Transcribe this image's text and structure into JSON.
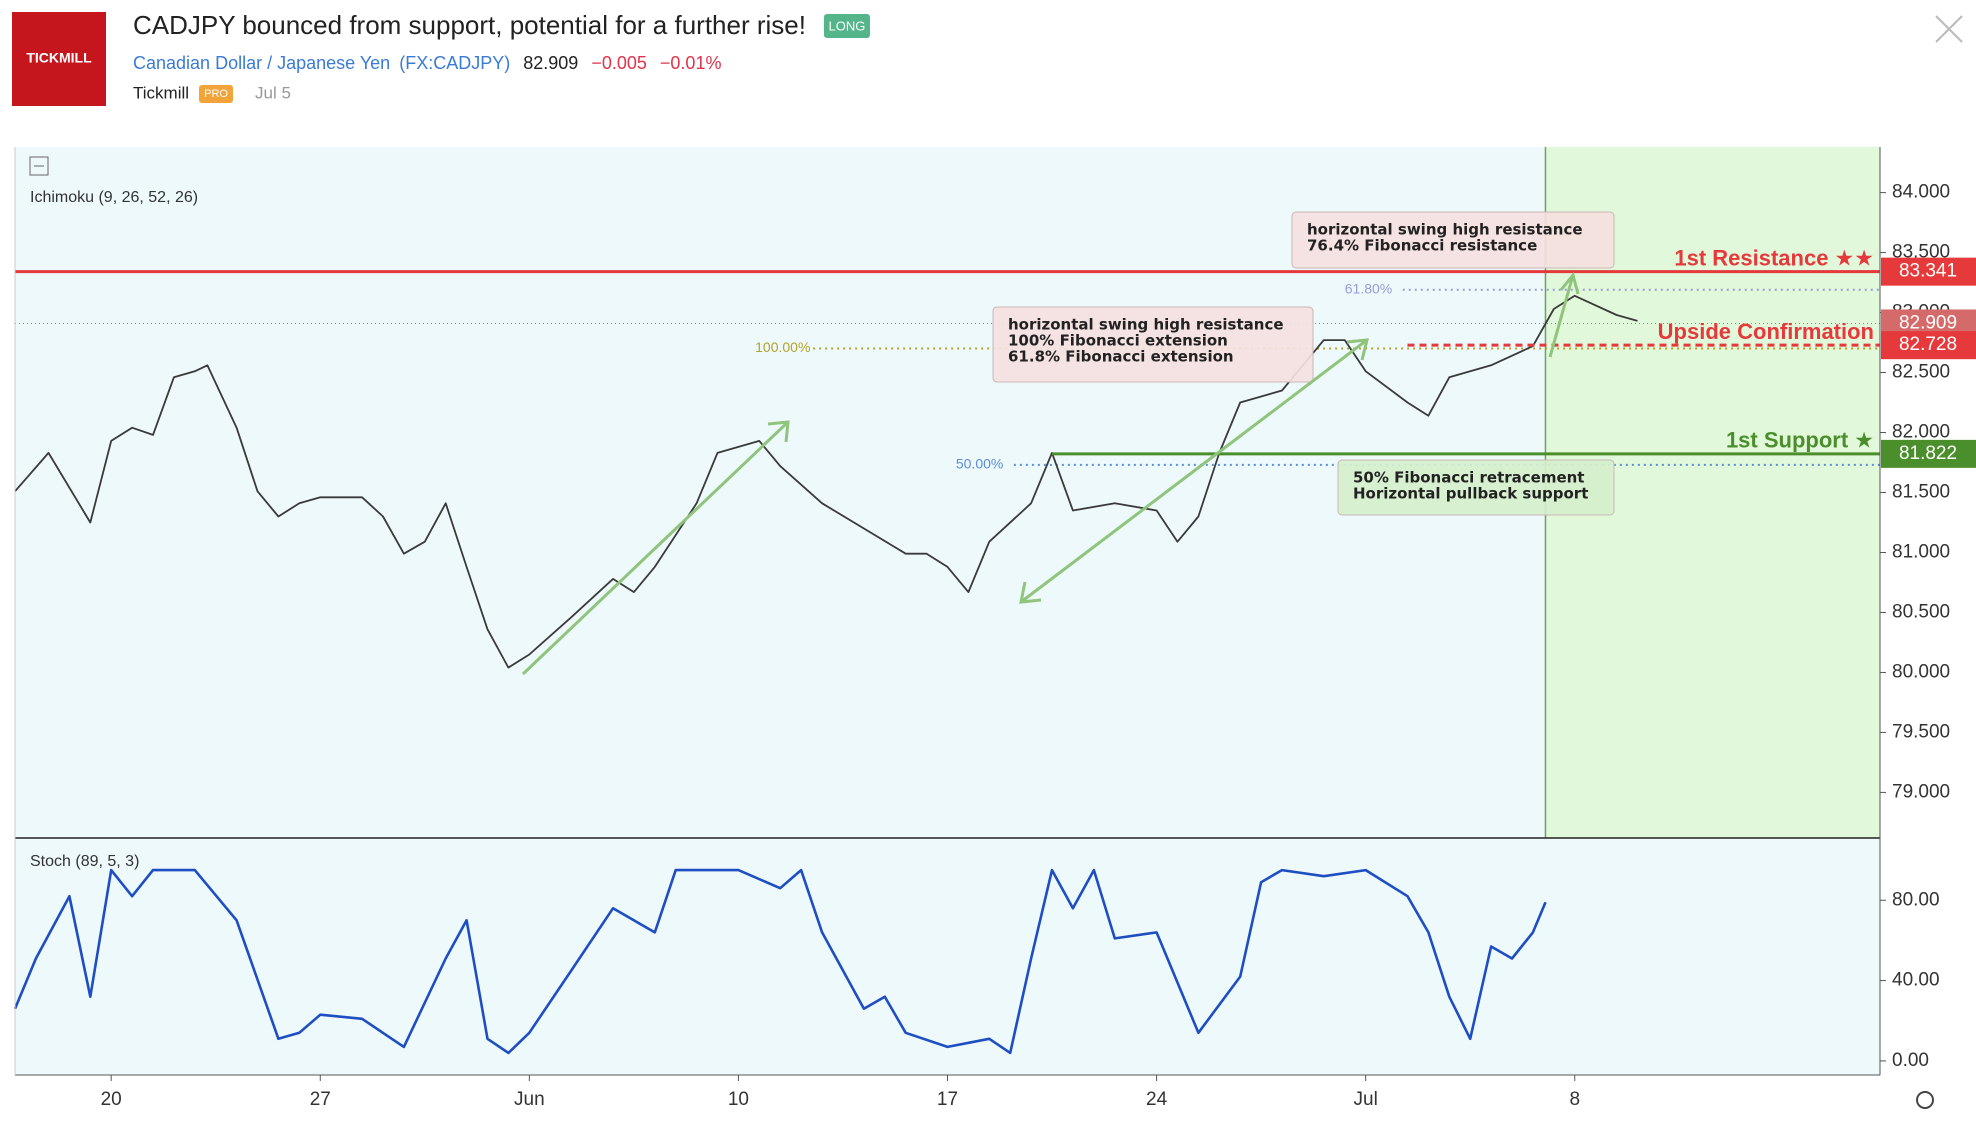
{
  "header": {
    "logo": "TICKMILL",
    "title": "CADJPY bounced from support, potential for a further rise!",
    "badge": "LONG",
    "instrument": "Canadian Dollar / Japanese Yen",
    "symbol": "(FX:CADJPY)",
    "price": "82.909",
    "change": "−0.005",
    "change_percent": "−0.01%",
    "author": "Tickmill",
    "author_badge": "PRO",
    "date": "Jul 5"
  },
  "chart_data": [
    {
      "type": "line",
      "title": "Ichimoku (9, 26, 52, 26)",
      "color": "#3a3a3a",
      "x": [
        -2.3,
        -1.5,
        -0.5,
        0,
        0.5,
        1,
        1.5,
        2,
        2.3,
        3,
        3.5,
        4,
        4.5,
        5,
        6,
        6.5,
        7,
        7.5,
        8,
        8.5,
        9,
        9.5,
        10,
        11,
        12,
        12.5,
        13,
        14,
        14.5,
        15,
        15.5,
        16,
        17,
        18,
        19,
        19.5,
        20,
        20.5,
        21,
        22,
        22.5,
        23,
        24,
        25,
        25.5,
        26,
        26.5,
        27,
        28,
        29,
        29.5,
        30,
        31,
        31.5,
        32,
        33,
        34,
        34.5,
        35,
        36,
        36.5
      ],
      "values": [
        81.51,
        81.83,
        81.25,
        81.93,
        82.04,
        81.98,
        82.46,
        82.51,
        82.56,
        82.04,
        81.51,
        81.3,
        81.41,
        81.46,
        81.46,
        81.3,
        80.99,
        81.09,
        81.41,
        80.88,
        80.36,
        80.04,
        80.15,
        80.46,
        80.78,
        80.67,
        80.88,
        81.41,
        81.83,
        81.88,
        81.93,
        81.72,
        81.41,
        81.2,
        80.99,
        80.99,
        80.88,
        80.67,
        81.09,
        81.41,
        81.83,
        81.35,
        81.41,
        81.35,
        81.09,
        81.3,
        81.83,
        82.25,
        82.35,
        82.77,
        82.77,
        82.51,
        82.25,
        82.14,
        82.46,
        82.56,
        82.72,
        83.03,
        83.14,
        82.98,
        82.93
      ],
      "xlim": [
        -2.3,
        42.3
      ],
      "ylim": [
        78.62,
        84.38
      ],
      "yticks": [
        {
          "value": 79,
          "label": "79.000"
        },
        {
          "value": 79.5,
          "label": "79.500"
        },
        {
          "value": 80,
          "label": "80.000"
        },
        {
          "value": 80.5,
          "label": "80.500"
        },
        {
          "value": 81,
          "label": "81.000"
        },
        {
          "value": 81.5,
          "label": "81.500"
        },
        {
          "value": 82,
          "label": "82.000"
        },
        {
          "value": 82.5,
          "label": "82.500"
        },
        {
          "value": 83,
          "label": "83.000"
        },
        {
          "value": 83.5,
          "label": "83.500"
        },
        {
          "value": 84,
          "label": "84.000"
        }
      ],
      "last_price": 82.909,
      "last_price_color": "#d46a6a",
      "highlight_from": 34.3,
      "highlight_color": "#e2f8da",
      "fib_levels": [
        {
          "label": "61.80%",
          "value": 83.19,
          "start": 29.5,
          "color": "#9b9bd6"
        },
        {
          "label": "100.00%",
          "value": 82.7,
          "start": 15.4,
          "color": "#b3a22a"
        },
        {
          "label": "50.00%",
          "value": 81.73,
          "start": 20.2,
          "color": "#5b8fd8"
        }
      ],
      "levels": [
        {
          "name": "1st Resistance ★★",
          "value": 83.341,
          "color": "#e5393b",
          "style": "solid"
        },
        {
          "name": "Upside Confirmation",
          "value": 82.728,
          "color": "#e5393b",
          "style": "dashed",
          "start": 31
        },
        {
          "name": "1st Support ★",
          "value": 81.822,
          "color": "#4b8f2c",
          "style": "solid",
          "start": 22.5
        }
      ],
      "annotations": [
        {
          "lines": [
            "horizontal swing high resistance",
            "76.4% Fibonacci resistance"
          ],
          "color": "#f5dfe0"
        },
        {
          "lines": [
            "horizontal swing high resistance",
            "100% Fibonacci extension",
            "61.8% Fibonacci extension"
          ],
          "color": "#f5dfe0"
        },
        {
          "lines": [
            "50% Fibonacci retracement",
            "Horizontal pullback support"
          ],
          "color": "#d5efcc"
        }
      ]
    },
    {
      "type": "line",
      "title": "Stoch (89, 5, 3)",
      "color": "#1f4ec2",
      "x": [
        -2.3,
        -1.8,
        -1,
        -0.5,
        0,
        0.5,
        1,
        2,
        3,
        4,
        4.5,
        5,
        6,
        7,
        8,
        8.5,
        9,
        9.5,
        10,
        11,
        12,
        13,
        13.5,
        15,
        16,
        16.5,
        17,
        18,
        18.5,
        19,
        20,
        21,
        21.5,
        22,
        22.5,
        23,
        23.5,
        24,
        25,
        26,
        27,
        27.5,
        28,
        29,
        30,
        31,
        31.5,
        32,
        32.5,
        33,
        33.5,
        34,
        34.3
      ],
      "values": [
        26,
        51,
        82,
        32,
        95,
        82,
        95,
        95,
        70,
        11,
        14,
        23,
        21,
        7,
        51,
        70,
        11,
        4,
        14,
        45,
        76,
        64,
        95,
        95,
        86,
        95,
        64,
        26,
        32,
        14,
        7,
        11,
        4,
        51,
        95,
        76,
        95,
        61,
        64,
        14,
        42,
        89,
        95,
        92,
        95,
        82,
        64,
        32,
        11,
        57,
        51,
        64,
        79
      ],
      "xlim": [
        -2.3,
        42.3
      ],
      "ylim": [
        -7,
        111
      ],
      "yticks": [
        {
          "value": 0,
          "label": "0.00"
        },
        {
          "value": 40,
          "label": "40.00"
        },
        {
          "value": 80,
          "label": "80.00"
        }
      ],
      "xticks": [
        {
          "value": 0,
          "label": "20"
        },
        {
          "value": 5,
          "label": "27"
        },
        {
          "value": 10,
          "label": "Jun"
        },
        {
          "value": 15,
          "label": "10"
        },
        {
          "value": 20,
          "label": "17"
        },
        {
          "value": 25,
          "label": "24"
        },
        {
          "value": 30,
          "label": "Jul"
        },
        {
          "value": 35,
          "label": "8"
        }
      ]
    }
  ]
}
